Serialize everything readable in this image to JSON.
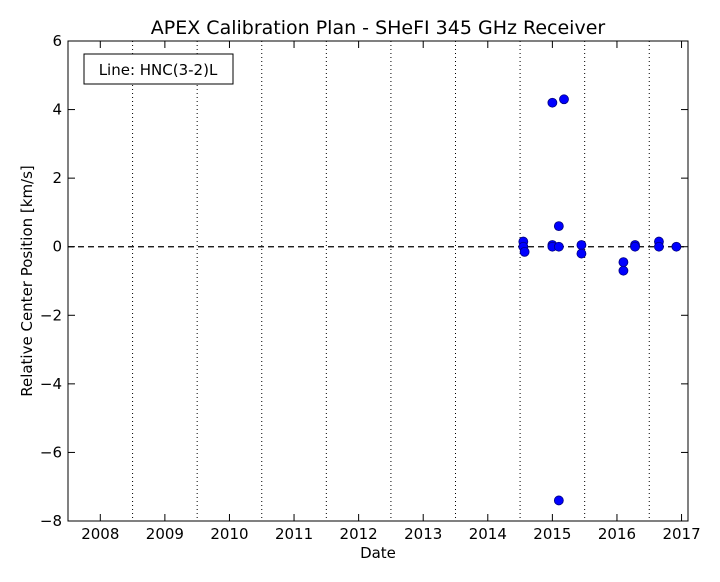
{
  "chart_data": {
    "type": "scatter",
    "title": "APEX Calibration Plan - SHeFI 345 GHz Receiver",
    "xlabel": "Date",
    "ylabel": "Relative Center Position [km/s]",
    "annotation": "Line: HNC(3-2)L",
    "xlim": [
      2007.5,
      2017.1
    ],
    "ylim": [
      -8,
      6
    ],
    "x_ticks": [
      2008,
      2009,
      2010,
      2011,
      2012,
      2013,
      2014,
      2015,
      2016,
      2017
    ],
    "x_tick_labels": [
      "2008",
      "2009",
      "2010",
      "2011",
      "2012",
      "2013",
      "2014",
      "2015",
      "2016",
      "2017"
    ],
    "y_ticks": [
      -8,
      -6,
      -4,
      -2,
      0,
      2,
      4,
      6
    ],
    "y_tick_labels": [
      "−8",
      "−6",
      "−4",
      "−2",
      "0",
      "2",
      "4",
      "6"
    ],
    "vertical_dotted_lines_at": [
      2008.5,
      2009.5,
      2010.5,
      2011.5,
      2012.5,
      2013.5,
      2014.5,
      2015.5,
      2016.5
    ],
    "reference_line_y": 0,
    "marker_color": "#0000ff",
    "points": [
      {
        "x": 2014.55,
        "y": 0.15
      },
      {
        "x": 2014.55,
        "y": 0.0
      },
      {
        "x": 2014.57,
        "y": -0.15
      },
      {
        "x": 2015.0,
        "y": 4.2
      },
      {
        "x": 2015.0,
        "y": 0.05
      },
      {
        "x": 2015.0,
        "y": 0.0
      },
      {
        "x": 2015.1,
        "y": 0.6
      },
      {
        "x": 2015.1,
        "y": 0.0
      },
      {
        "x": 2015.1,
        "y": -7.4
      },
      {
        "x": 2015.18,
        "y": 4.3
      },
      {
        "x": 2015.45,
        "y": 0.05
      },
      {
        "x": 2015.45,
        "y": -0.2
      },
      {
        "x": 2016.1,
        "y": -0.45
      },
      {
        "x": 2016.1,
        "y": -0.7
      },
      {
        "x": 2016.28,
        "y": 0.05
      },
      {
        "x": 2016.28,
        "y": 0.0
      },
      {
        "x": 2016.65,
        "y": 0.15
      },
      {
        "x": 2016.65,
        "y": 0.0
      },
      {
        "x": 2016.92,
        "y": 0.0
      }
    ]
  }
}
